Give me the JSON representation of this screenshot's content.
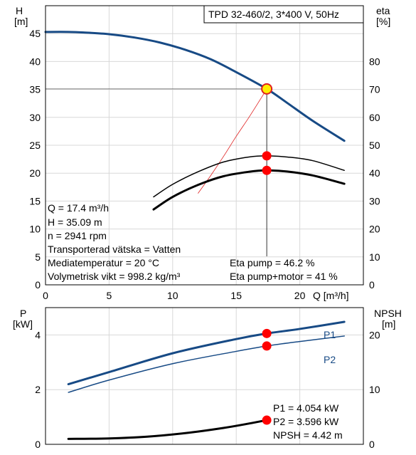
{
  "chart_data": [
    {
      "type": "line",
      "title": "TPD 32-460/2, 3*400 V, 50Hz",
      "xlabel": "Q [m³/h]",
      "ylabel_left": [
        "H",
        "[m]"
      ],
      "ylabel_right": [
        "eta",
        "[%]"
      ],
      "xlim": [
        0,
        25
      ],
      "ylim_left": [
        0,
        50
      ],
      "ylim_right": [
        0,
        100
      ],
      "x_ticks": [
        "0",
        "5",
        "10",
        "15",
        "20"
      ],
      "y_ticks_left": [
        "0",
        "5",
        "10",
        "15",
        "20",
        "25",
        "30",
        "35",
        "40",
        "45"
      ],
      "y_ticks_right": [
        "0",
        "10",
        "20",
        "30",
        "40",
        "50",
        "60",
        "70",
        "80"
      ],
      "grid": true,
      "series": [
        {
          "key": "head",
          "axis": "left",
          "color": "#174a85",
          "width": 3,
          "x": [
            0,
            1.8,
            3,
            5,
            7,
            9,
            11,
            13,
            15,
            17.4,
            19,
            21,
            23.5
          ],
          "y": [
            45.3,
            45.3,
            45.2,
            44.9,
            44.3,
            43.4,
            42.1,
            40.4,
            38.1,
            35.1,
            32.6,
            29.4,
            25.8
          ]
        },
        {
          "key": "system-curve",
          "axis": "left",
          "color": "#e02020",
          "width": 0.8,
          "x": [
            12,
            13,
            14,
            15,
            16,
            17,
            17.4
          ],
          "y": [
            16.4,
            19.6,
            23.0,
            26.6,
            30.0,
            33.6,
            35.1
          ]
        },
        {
          "key": "eta-pump",
          "axis": "right",
          "color": "#000000",
          "width": 1.5,
          "x": [
            8.5,
            10,
            12,
            14,
            16,
            17.4,
            19,
            21,
            23.5
          ],
          "y": [
            31.5,
            36,
            40.5,
            44,
            45.8,
            46.2,
            45.8,
            44.5,
            41.0
          ]
        },
        {
          "key": "eta-pump-motor",
          "axis": "right",
          "color": "#000000",
          "width": 3,
          "x": [
            8.5,
            10,
            12,
            14,
            16,
            17.4,
            19,
            21,
            23.5
          ],
          "y": [
            27.0,
            31.5,
            35.8,
            38.9,
            40.5,
            41.0,
            40.6,
            39.2,
            36.2
          ]
        }
      ],
      "markers": [
        {
          "key": "duty-point",
          "x": 17.4,
          "y": 35.09,
          "axis": "left",
          "fill": "#ffee00",
          "stroke": "#e02020"
        },
        {
          "key": "eta-pump-point",
          "x": 17.4,
          "y": 46.2,
          "axis": "right",
          "fill": "#ff0000",
          "stroke": "#ff0000"
        },
        {
          "key": "eta-motor-point",
          "x": 17.4,
          "y": 41.0,
          "axis": "right",
          "fill": "#ff0000",
          "stroke": "#ff0000"
        }
      ],
      "info_left": [
        "Q = 17.4 m³/h",
        "H = 35.09 m",
        "n = 2941 rpm",
        "Transporterad vätska = Vatten",
        "Mediatemperatur = 20 °C",
        "Volymetrisk vikt = 998.2 kg/m³"
      ],
      "info_right": [
        "Eta pump = 46.2 %",
        "Eta pump+motor = 41 %"
      ]
    },
    {
      "type": "line",
      "ylabel_left": [
        "P",
        "[kW]"
      ],
      "ylabel_right": [
        "NPSH",
        "[m]"
      ],
      "xlim": [
        0,
        25
      ],
      "ylim_left": [
        0,
        5
      ],
      "ylim_right": [
        0,
        25
      ],
      "y_ticks_left": [
        "0",
        "2",
        "4"
      ],
      "y_ticks_right": [
        "0",
        "10",
        "20"
      ],
      "grid": true,
      "series": [
        {
          "key": "P1",
          "name": "P1",
          "axis": "left",
          "color": "#174a85",
          "width": 3,
          "x": [
            1.8,
            5,
            10,
            15,
            17.4,
            20,
            23.5
          ],
          "y": [
            2.2,
            2.64,
            3.33,
            3.85,
            4.054,
            4.22,
            4.48
          ]
        },
        {
          "key": "P2",
          "name": "P2",
          "axis": "left",
          "color": "#174a85",
          "width": 1.5,
          "x": [
            1.8,
            5,
            10,
            15,
            17.4,
            20,
            23.5
          ],
          "y": [
            1.9,
            2.35,
            2.95,
            3.4,
            3.596,
            3.76,
            3.96
          ]
        },
        {
          "key": "NPSH",
          "axis": "right",
          "color": "#000000",
          "width": 3,
          "x": [
            1.8,
            5,
            8,
            11,
            14,
            16,
            17.4
          ],
          "y": [
            1.0,
            1.08,
            1.4,
            2.05,
            3.0,
            3.8,
            4.42
          ]
        }
      ],
      "markers": [
        {
          "key": "P1-point",
          "x": 17.4,
          "y": 4.054,
          "axis": "left",
          "fill": "#ff0000",
          "stroke": "#ff0000"
        },
        {
          "key": "P2-point",
          "x": 17.4,
          "y": 3.596,
          "axis": "left",
          "fill": "#ff0000",
          "stroke": "#ff0000"
        },
        {
          "key": "NPSH-point",
          "x": 17.4,
          "y": 4.42,
          "axis": "right",
          "fill": "#ff0000",
          "stroke": "#ff0000"
        }
      ],
      "info_right": [
        "P1 = 4.054 kW",
        "P2 = 3.596 kW",
        "NPSH = 4.42 m"
      ]
    }
  ]
}
